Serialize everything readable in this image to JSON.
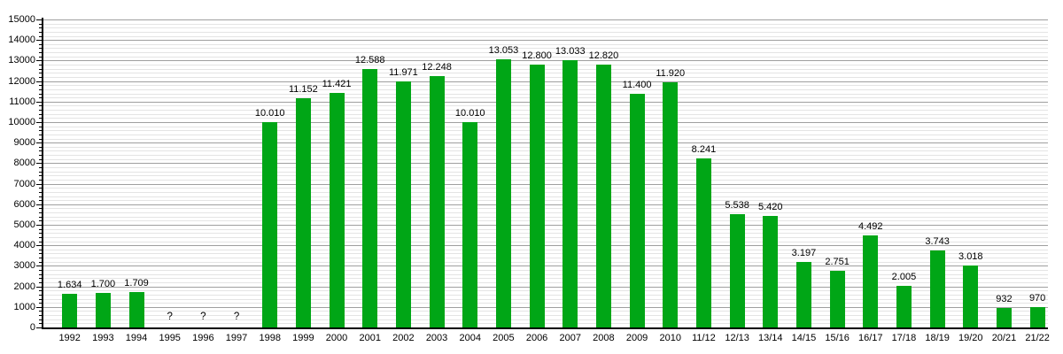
{
  "chart_data": {
    "type": "bar",
    "title": "",
    "xlabel": "",
    "ylabel": "",
    "categories": [
      "1992",
      "1993",
      "1994",
      "1995",
      "1996",
      "1997",
      "1998",
      "1999",
      "2000",
      "2001",
      "2002",
      "2003",
      "2004",
      "2005",
      "2006",
      "2007",
      "2008",
      "2009",
      "2010",
      "11/12",
      "12/13",
      "13/14",
      "14/15",
      "15/16",
      "16/17",
      "17/18",
      "18/19",
      "19/20",
      "20/21",
      "21/22"
    ],
    "values": [
      1634,
      1700,
      1709,
      null,
      null,
      null,
      10010,
      11152,
      11421,
      12588,
      11971,
      12248,
      10010,
      13053,
      12800,
      13033,
      12820,
      11400,
      11920,
      8241,
      5538,
      5420,
      3197,
      2751,
      4492,
      2005,
      3743,
      3018,
      932,
      970
    ],
    "value_labels": [
      "1.634",
      "1.700",
      "1.709",
      "?",
      "?",
      "?",
      "10.010",
      "11.152",
      "11.421",
      "12.588",
      "11.971",
      "12.248",
      "10.010",
      "13.053",
      "12.800",
      "13.033",
      "12.820",
      "11.400",
      "11.920",
      "8.241",
      "5.538",
      "5.420",
      "3.197",
      "2.751",
      "4.492",
      "2.005",
      "3.743",
      "3.018",
      "932",
      "970"
    ],
    "missing_value_marker": "?",
    "ylim": [
      0,
      15000
    ],
    "y_major_step": 1000,
    "y_minor_step": 200,
    "y_tick_labels": [
      "0",
      "1000",
      "2000",
      "3000",
      "4000",
      "5000",
      "6000",
      "7000",
      "8000",
      "9000",
      "10000",
      "11000",
      "12000",
      "13000",
      "14000",
      "15000"
    ],
    "grid": true,
    "legend": "none",
    "colors": {
      "bar": "#00a616",
      "major_grid": "#9f9f9f",
      "minor_grid": "#e4e4e4",
      "axis": "#000000",
      "text": "#000000"
    }
  }
}
